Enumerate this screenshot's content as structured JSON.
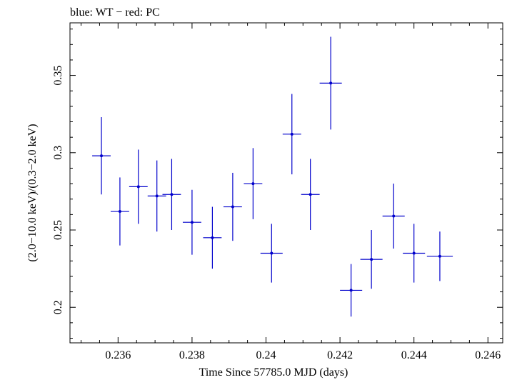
{
  "chart_data": {
    "type": "scatter",
    "title": "blue: WT − red: PC",
    "xlabel": "Time Since 57785.0 MJD (days)",
    "ylabel": "(2.0−10.0 keV)/(0.3−2.0 keV)",
    "xlim": [
      0.2347,
      0.2464
    ],
    "ylim": [
      0.177,
      0.384
    ],
    "x_ticks": [
      0.236,
      0.238,
      0.24,
      0.242,
      0.244,
      0.246
    ],
    "x_tick_labels": [
      "0.236",
      "0.238",
      "0.24",
      "0.242",
      "0.244",
      "0.246"
    ],
    "y_ticks": [
      0.2,
      0.25,
      0.3,
      0.35
    ],
    "y_tick_labels": [
      "0.2",
      "0.25",
      "0.3",
      "0.35"
    ],
    "grid": false,
    "series": [
      {
        "name": "WT",
        "color": "#0000cc",
        "points": [
          {
            "x": 0.23555,
            "y": 0.298,
            "xerr": 0.00025,
            "yerr": 0.025
          },
          {
            "x": 0.23605,
            "y": 0.262,
            "xerr": 0.00025,
            "yerr": 0.022
          },
          {
            "x": 0.23655,
            "y": 0.278,
            "xerr": 0.00025,
            "yerr": 0.024
          },
          {
            "x": 0.23705,
            "y": 0.272,
            "xerr": 0.00025,
            "yerr": 0.023
          },
          {
            "x": 0.23745,
            "y": 0.273,
            "xerr": 0.00025,
            "yerr": 0.023
          },
          {
            "x": 0.238,
            "y": 0.255,
            "xerr": 0.00025,
            "yerr": 0.021
          },
          {
            "x": 0.23855,
            "y": 0.245,
            "xerr": 0.00025,
            "yerr": 0.02
          },
          {
            "x": 0.2391,
            "y": 0.265,
            "xerr": 0.00025,
            "yerr": 0.022
          },
          {
            "x": 0.23965,
            "y": 0.28,
            "xerr": 0.00025,
            "yerr": 0.023
          },
          {
            "x": 0.24015,
            "y": 0.235,
            "xerr": 0.0003,
            "yerr": 0.019
          },
          {
            "x": 0.2407,
            "y": 0.312,
            "xerr": 0.00025,
            "yerr": 0.026
          },
          {
            "x": 0.2412,
            "y": 0.273,
            "xerr": 0.00025,
            "yerr": 0.023
          },
          {
            "x": 0.24175,
            "y": 0.345,
            "xerr": 0.0003,
            "yerr": 0.03
          },
          {
            "x": 0.2423,
            "y": 0.211,
            "xerr": 0.0003,
            "yerr": 0.017
          },
          {
            "x": 0.24285,
            "y": 0.231,
            "xerr": 0.0003,
            "yerr": 0.019
          },
          {
            "x": 0.24345,
            "y": 0.259,
            "xerr": 0.0003,
            "yerr": 0.021
          },
          {
            "x": 0.244,
            "y": 0.235,
            "xerr": 0.0003,
            "yerr": 0.019
          },
          {
            "x": 0.2447,
            "y": 0.233,
            "xerr": 0.00035,
            "yerr": 0.016
          }
        ]
      }
    ]
  }
}
